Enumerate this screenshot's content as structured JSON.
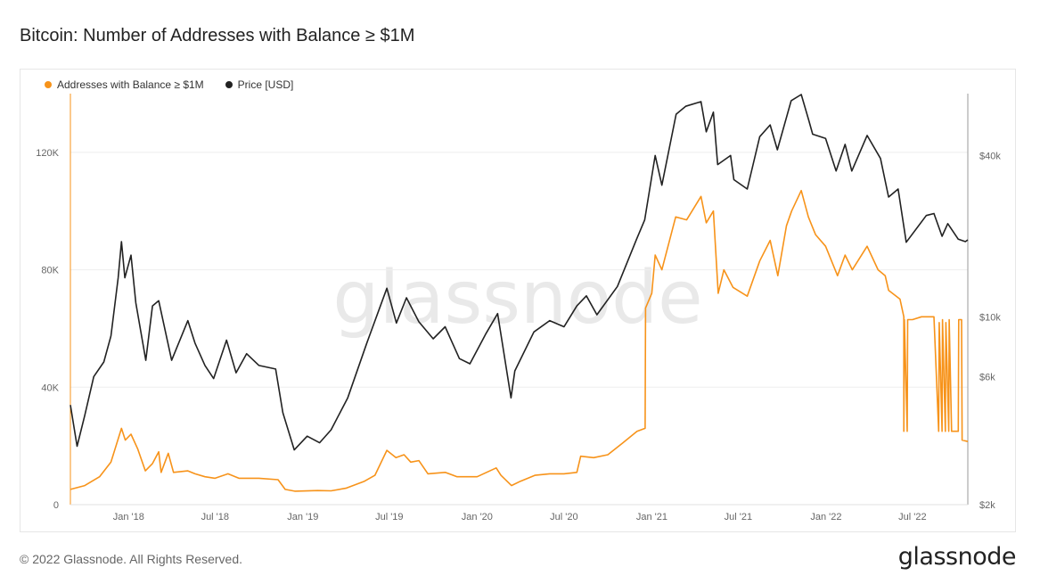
{
  "header": {
    "title": "Bitcoin: Number of Addresses with Balance ≥ $1M"
  },
  "footer": {
    "copyright": "© 2022 Glassnode. All Rights Reserved.",
    "brand": "glassnode"
  },
  "watermark": "glassnode",
  "colors": {
    "addresses": "#f7931a",
    "price": "#222222",
    "grid": "#eeeeee"
  },
  "chart_data": {
    "type": "line",
    "title": "Bitcoin: Number of Addresses with Balance ≥ $1M",
    "legend_placement": "top-left",
    "grid": true,
    "x_ticks": [
      {
        "date": "2018-01-01",
        "label": "Jan '18"
      },
      {
        "date": "2018-07-01",
        "label": "Jul '18"
      },
      {
        "date": "2019-01-01",
        "label": "Jan '19"
      },
      {
        "date": "2019-07-01",
        "label": "Jul '19"
      },
      {
        "date": "2020-01-01",
        "label": "Jan '20"
      },
      {
        "date": "2020-07-01",
        "label": "Jul '20"
      },
      {
        "date": "2021-01-01",
        "label": "Jan '21"
      },
      {
        "date": "2021-07-01",
        "label": "Jul '21"
      },
      {
        "date": "2022-01-01",
        "label": "Jan '22"
      },
      {
        "date": "2022-07-01",
        "label": "Jul '22"
      }
    ],
    "x_range": [
      "2017-09-01",
      "2022-10-25"
    ],
    "y_left": {
      "scale": "linear",
      "range": [
        0,
        140000
      ],
      "ticks": [
        0,
        40000,
        80000,
        120000
      ],
      "tick_labels": [
        "0",
        "40K",
        "80K",
        "120K"
      ]
    },
    "y_right": {
      "scale": "log",
      "range": [
        2000,
        68000
      ],
      "ticks": [
        2000,
        6000,
        10000,
        40000
      ],
      "tick_labels": [
        "$2k",
        "$6k",
        "$10k",
        "$40k"
      ]
    },
    "series": [
      {
        "name": "Addresses with Balance ≥ $1M",
        "axis": "left",
        "color": "#f7931a",
        "points": [
          [
            "2017-09-01",
            5200
          ],
          [
            "2017-10-01",
            6500
          ],
          [
            "2017-11-01",
            9500
          ],
          [
            "2017-11-25",
            14500
          ],
          [
            "2017-12-17",
            26000
          ],
          [
            "2017-12-25",
            22000
          ],
          [
            "2018-01-06",
            24000
          ],
          [
            "2018-01-20",
            19000
          ],
          [
            "2018-02-05",
            11500
          ],
          [
            "2018-02-20",
            14000
          ],
          [
            "2018-03-05",
            18000
          ],
          [
            "2018-03-10",
            11000
          ],
          [
            "2018-03-25",
            17500
          ],
          [
            "2018-04-05",
            11000
          ],
          [
            "2018-05-05",
            11500
          ],
          [
            "2018-05-20",
            10500
          ],
          [
            "2018-06-10",
            9500
          ],
          [
            "2018-07-01",
            9000
          ],
          [
            "2018-07-28",
            10500
          ],
          [
            "2018-08-20",
            9000
          ],
          [
            "2018-10-01",
            9000
          ],
          [
            "2018-11-10",
            8500
          ],
          [
            "2018-11-25",
            5200
          ],
          [
            "2018-12-15",
            4600
          ],
          [
            "2019-02-01",
            4800
          ],
          [
            "2019-03-01",
            4700
          ],
          [
            "2019-04-01",
            5600
          ],
          [
            "2019-05-10",
            8000
          ],
          [
            "2019-06-01",
            10000
          ],
          [
            "2019-06-26",
            18500
          ],
          [
            "2019-07-15",
            16000
          ],
          [
            "2019-08-01",
            17000
          ],
          [
            "2019-08-15",
            14500
          ],
          [
            "2019-09-01",
            15000
          ],
          [
            "2019-09-20",
            10500
          ],
          [
            "2019-10-26",
            11000
          ],
          [
            "2019-11-20",
            9500
          ],
          [
            "2020-01-01",
            9500
          ],
          [
            "2020-02-10",
            12500
          ],
          [
            "2020-02-20",
            10000
          ],
          [
            "2020-03-13",
            6500
          ],
          [
            "2020-04-01",
            8000
          ],
          [
            "2020-05-01",
            10000
          ],
          [
            "2020-06-01",
            10500
          ],
          [
            "2020-07-01",
            10500
          ],
          [
            "2020-07-28",
            11000
          ],
          [
            "2020-08-05",
            16500
          ],
          [
            "2020-09-01",
            16000
          ],
          [
            "2020-10-01",
            17000
          ],
          [
            "2020-11-01",
            21000
          ],
          [
            "2020-12-01",
            25000
          ],
          [
            "2020-12-18",
            26000
          ],
          [
            "2020-12-19",
            67000
          ],
          [
            "2021-01-01",
            72000
          ],
          [
            "2021-01-08",
            85000
          ],
          [
            "2021-01-22",
            80000
          ],
          [
            "2021-02-20",
            98000
          ],
          [
            "2021-03-15",
            97000
          ],
          [
            "2021-04-14",
            105000
          ],
          [
            "2021-04-25",
            96000
          ],
          [
            "2021-05-10",
            100000
          ],
          [
            "2021-05-20",
            72000
          ],
          [
            "2021-06-01",
            80000
          ],
          [
            "2021-06-20",
            74000
          ],
          [
            "2021-07-20",
            71000
          ],
          [
            "2021-08-15",
            83000
          ],
          [
            "2021-09-06",
            90000
          ],
          [
            "2021-09-22",
            78000
          ],
          [
            "2021-10-10",
            95000
          ],
          [
            "2021-10-21",
            100000
          ],
          [
            "2021-11-10",
            107000
          ],
          [
            "2021-11-25",
            98000
          ],
          [
            "2021-12-10",
            92000
          ],
          [
            "2021-12-31",
            88000
          ],
          [
            "2022-01-25",
            78000
          ],
          [
            "2022-02-10",
            85000
          ],
          [
            "2022-02-25",
            80000
          ],
          [
            "2022-03-28",
            88000
          ],
          [
            "2022-04-20",
            80000
          ],
          [
            "2022-05-05",
            78000
          ],
          [
            "2022-05-12",
            73000
          ],
          [
            "2022-06-05",
            70000
          ],
          [
            "2022-06-13",
            64000
          ],
          [
            "2022-06-13",
            25000
          ],
          [
            "2022-06-14",
            63000
          ],
          [
            "2022-06-20",
            25000
          ],
          [
            "2022-06-21",
            63000
          ],
          [
            "2022-07-01",
            63000
          ],
          [
            "2022-07-20",
            64000
          ],
          [
            "2022-08-15",
            64000
          ],
          [
            "2022-08-25",
            25000
          ],
          [
            "2022-08-26",
            62000
          ],
          [
            "2022-09-01",
            25000
          ],
          [
            "2022-09-02",
            63000
          ],
          [
            "2022-09-08",
            25000
          ],
          [
            "2022-09-09",
            62000
          ],
          [
            "2022-09-15",
            25000
          ],
          [
            "2022-09-16",
            63000
          ],
          [
            "2022-09-21",
            25000
          ],
          [
            "2022-10-05",
            25000
          ],
          [
            "2022-10-06",
            63000
          ],
          [
            "2022-10-12",
            63000
          ],
          [
            "2022-10-13",
            22000
          ],
          [
            "2022-10-25",
            21500
          ]
        ]
      },
      {
        "name": "Price [USD]",
        "axis": "right",
        "color": "#222222",
        "points": [
          [
            "2017-09-01",
            4700
          ],
          [
            "2017-09-15",
            3300
          ],
          [
            "2017-10-01",
            4300
          ],
          [
            "2017-10-20",
            6000
          ],
          [
            "2017-11-10",
            6800
          ],
          [
            "2017-11-25",
            8500
          ],
          [
            "2017-12-10",
            14000
          ],
          [
            "2017-12-17",
            19100
          ],
          [
            "2017-12-24",
            14000
          ],
          [
            "2018-01-06",
            17000
          ],
          [
            "2018-01-16",
            11300
          ],
          [
            "2018-02-06",
            6900
          ],
          [
            "2018-02-20",
            11000
          ],
          [
            "2018-03-05",
            11500
          ],
          [
            "2018-04-01",
            6900
          ],
          [
            "2018-05-05",
            9700
          ],
          [
            "2018-05-20",
            8000
          ],
          [
            "2018-06-10",
            6600
          ],
          [
            "2018-06-28",
            5900
          ],
          [
            "2018-07-25",
            8200
          ],
          [
            "2018-08-14",
            6200
          ],
          [
            "2018-09-05",
            7300
          ],
          [
            "2018-10-01",
            6600
          ],
          [
            "2018-11-05",
            6400
          ],
          [
            "2018-11-20",
            4400
          ],
          [
            "2018-12-14",
            3200
          ],
          [
            "2019-01-10",
            3600
          ],
          [
            "2019-02-05",
            3400
          ],
          [
            "2019-03-01",
            3800
          ],
          [
            "2019-04-05",
            5000
          ],
          [
            "2019-05-15",
            8000
          ],
          [
            "2019-06-26",
            12800
          ],
          [
            "2019-07-16",
            9500
          ],
          [
            "2019-08-06",
            11800
          ],
          [
            "2019-09-01",
            9600
          ],
          [
            "2019-10-01",
            8300
          ],
          [
            "2019-10-26",
            9200
          ],
          [
            "2019-11-25",
            7000
          ],
          [
            "2019-12-17",
            6700
          ],
          [
            "2020-01-20",
            8700
          ],
          [
            "2020-02-13",
            10300
          ],
          [
            "2020-03-12",
            5000
          ],
          [
            "2020-03-20",
            6300
          ],
          [
            "2020-04-29",
            8800
          ],
          [
            "2020-06-01",
            9700
          ],
          [
            "2020-07-01",
            9200
          ],
          [
            "2020-07-28",
            11000
          ],
          [
            "2020-08-17",
            12000
          ],
          [
            "2020-09-08",
            10200
          ],
          [
            "2020-10-21",
            13000
          ],
          [
            "2020-11-30",
            19500
          ],
          [
            "2020-12-17",
            23000
          ],
          [
            "2021-01-08",
            40000
          ],
          [
            "2021-01-22",
            31000
          ],
          [
            "2021-02-21",
            57000
          ],
          [
            "2021-03-13",
            61000
          ],
          [
            "2021-04-14",
            63500
          ],
          [
            "2021-04-25",
            49000
          ],
          [
            "2021-05-10",
            58000
          ],
          [
            "2021-05-19",
            37000
          ],
          [
            "2021-06-15",
            40000
          ],
          [
            "2021-06-22",
            32500
          ],
          [
            "2021-07-20",
            30000
          ],
          [
            "2021-08-15",
            47000
          ],
          [
            "2021-09-06",
            52000
          ],
          [
            "2021-09-21",
            42000
          ],
          [
            "2021-10-20",
            64000
          ],
          [
            "2021-11-10",
            67500
          ],
          [
            "2021-11-26",
            54000
          ],
          [
            "2021-12-04",
            48000
          ],
          [
            "2021-12-31",
            46300
          ],
          [
            "2022-01-22",
            35000
          ],
          [
            "2022-02-10",
            44000
          ],
          [
            "2022-02-24",
            35000
          ],
          [
            "2022-03-28",
            47500
          ],
          [
            "2022-04-25",
            39000
          ],
          [
            "2022-05-12",
            28000
          ],
          [
            "2022-06-01",
            30000
          ],
          [
            "2022-06-18",
            19000
          ],
          [
            "2022-07-30",
            23900
          ],
          [
            "2022-08-15",
            24300
          ],
          [
            "2022-09-01",
            20000
          ],
          [
            "2022-09-13",
            22300
          ],
          [
            "2022-10-05",
            19500
          ],
          [
            "2022-10-20",
            19100
          ],
          [
            "2022-10-25",
            19400
          ]
        ]
      }
    ]
  }
}
